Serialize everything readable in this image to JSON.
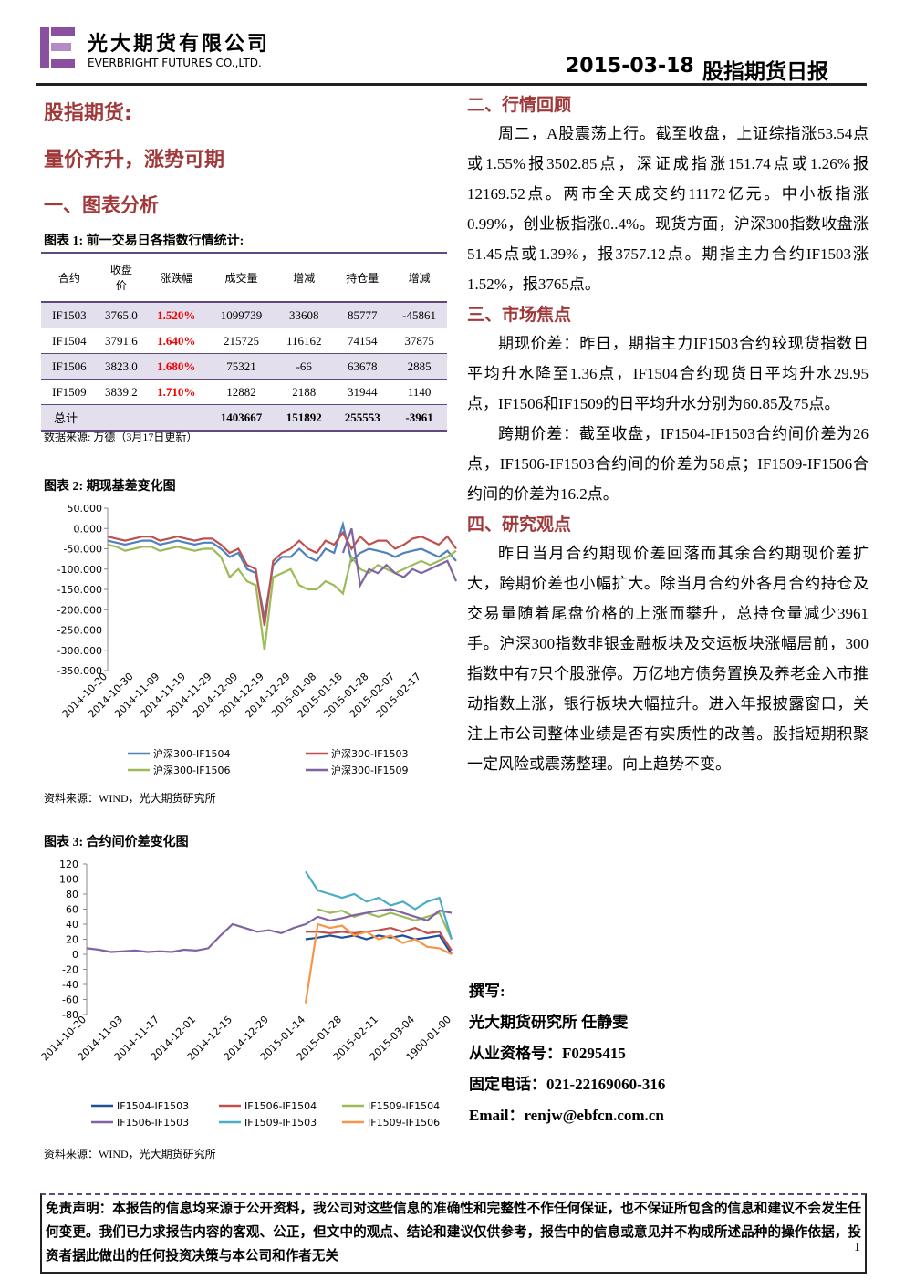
{
  "header": {
    "company_cn": "光大期货有限公司",
    "company_en": "EVERBRIGHT FUTURES CO.,LTD.",
    "date": "2015-03-18",
    "report_title": "股指期货日报"
  },
  "left": {
    "section_title": "股指期货:",
    "headline": "量价齐升，涨势可期",
    "heading1": "一、图表分析"
  },
  "table": {
    "caption": "图表 1:  前一交易日各指数行情统计:",
    "columns": [
      "合约",
      "收盘价",
      "涨跌幅",
      "成交量",
      "增减",
      "持仓量",
      "增减"
    ],
    "rows": [
      [
        "IF1503",
        "3765.0",
        "1.520%",
        "1099739",
        "33608",
        "85777",
        "-45861"
      ],
      [
        "IF1504",
        "3791.6",
        "1.640%",
        "215725",
        "116162",
        "74154",
        "37875"
      ],
      [
        "IF1506",
        "3823.0",
        "1.680%",
        "75321",
        "-66",
        "63678",
        "2885"
      ],
      [
        "IF1509",
        "3839.2",
        "1.710%",
        "12882",
        "2188",
        "31944",
        "1140"
      ]
    ],
    "total": {
      "label": "总计",
      "values": [
        "1403667",
        "151892",
        "255553",
        "-3961"
      ]
    },
    "source": "数据来源: 万德（3月17日更新）"
  },
  "chart_data": [
    {
      "type": "line",
      "title": "图表 2: 期现基差变化图",
      "source": "资料来源：WIND，光大期货研究所",
      "categories": [
        "2014-10-20",
        null,
        null,
        "2014-10-30",
        null,
        null,
        "2014-11-09",
        null,
        null,
        "2014-11-19",
        null,
        null,
        "2014-11-29",
        null,
        null,
        "2014-12-09",
        null,
        null,
        "2014-12-19",
        null,
        null,
        "2014-12-29",
        null,
        null,
        "2015-01-08",
        null,
        null,
        "2015-01-18",
        null,
        null,
        "2015-01-28",
        null,
        null,
        "2015-02-07",
        null,
        null,
        "2015-02-17",
        null,
        null,
        null,
        null
      ],
      "series": [
        {
          "name": "沪深300-IF1504",
          "color": "#4f81bd",
          "values": [
            -30,
            -35,
            -40,
            -35,
            -30,
            -30,
            -40,
            -35,
            -30,
            -35,
            -40,
            -35,
            -35,
            -50,
            -70,
            -60,
            -100,
            -110,
            -220,
            -90,
            -70,
            -70,
            -50,
            -70,
            -80,
            -50,
            -60,
            10,
            -80,
            -60,
            -50,
            -55,
            -60,
            -70,
            -60,
            -55,
            -50,
            -60,
            -70,
            -55,
            -80
          ]
        },
        {
          "name": "沪深300-IF1503",
          "color": "#c0504d",
          "values": [
            -20,
            -25,
            -30,
            -25,
            -20,
            -20,
            -30,
            -25,
            -20,
            -25,
            -30,
            -25,
            -25,
            -40,
            -60,
            -50,
            -90,
            -100,
            -240,
            -80,
            -60,
            -50,
            -30,
            -50,
            -60,
            -30,
            -40,
            -10,
            -50,
            -20,
            -40,
            -30,
            -30,
            -50,
            -40,
            -25,
            -20,
            -30,
            -40,
            -20,
            -50
          ]
        },
        {
          "name": "沪深300-IF1506",
          "color": "#9bbb59",
          "values": [
            -40,
            -45,
            -55,
            -50,
            -45,
            -45,
            -55,
            -50,
            -45,
            -50,
            -55,
            -50,
            -50,
            -70,
            -120,
            -100,
            -130,
            -140,
            -300,
            -120,
            -110,
            -100,
            -140,
            -150,
            -150,
            -130,
            -140,
            -160,
            -70,
            -100,
            -110,
            -90,
            -100,
            -110,
            -100,
            -90,
            -80,
            -90,
            -80,
            -70,
            -55
          ]
        },
        {
          "name": "沪深300-IF1509",
          "color": "#8064a2",
          "values": [
            null,
            null,
            null,
            null,
            null,
            null,
            null,
            null,
            null,
            null,
            null,
            null,
            null,
            null,
            null,
            null,
            null,
            null,
            null,
            null,
            null,
            null,
            null,
            null,
            null,
            null,
            null,
            -60,
            0,
            -140,
            -100,
            -110,
            -90,
            -110,
            -120,
            -100,
            -110,
            -100,
            -90,
            -80,
            -130
          ]
        }
      ],
      "ylim": [
        -350,
        50
      ],
      "yticks": [
        {
          "value": -350,
          "label": "-350.000"
        },
        {
          "value": -300,
          "label": "-300.000"
        },
        {
          "value": -250,
          "label": "-250.000"
        },
        {
          "value": -200,
          "label": "-200.000"
        },
        {
          "value": -150,
          "label": "-150.000"
        },
        {
          "value": -100,
          "label": "-100.000"
        },
        {
          "value": -50,
          "label": "-50.000"
        },
        {
          "value": 0,
          "label": "0.000"
        },
        {
          "value": 50,
          "label": "50.000"
        }
      ]
    },
    {
      "type": "line",
      "title": "图表 3: 合约间价差变化图",
      "source": "资料来源：WIND，光大期货研究所",
      "categories": [
        "2014-10-20",
        null,
        null,
        "2014-11-03",
        null,
        null,
        "2014-11-17",
        null,
        null,
        "2014-12-01",
        null,
        null,
        "2014-12-15",
        null,
        null,
        "2014-12-29",
        null,
        null,
        "2015-01-14",
        null,
        null,
        "2015-01-28",
        null,
        null,
        "2015-02-11",
        null,
        null,
        "2015-03-04",
        null,
        null,
        "1900-01-00"
      ],
      "series": [
        {
          "name": "IF1504-IF1503",
          "color": "#1f4e9a",
          "values": [
            null,
            null,
            null,
            null,
            null,
            null,
            null,
            null,
            null,
            null,
            null,
            null,
            null,
            null,
            null,
            null,
            null,
            null,
            20,
            22,
            25,
            22,
            25,
            20,
            25,
            22,
            25,
            20,
            22,
            25,
            0
          ]
        },
        {
          "name": "IF1506-IF1504",
          "color": "#c0504d",
          "values": [
            null,
            null,
            null,
            null,
            null,
            null,
            null,
            null,
            null,
            null,
            null,
            null,
            null,
            null,
            null,
            null,
            null,
            null,
            30,
            30,
            28,
            30,
            28,
            30,
            32,
            35,
            30,
            35,
            28,
            30,
            5
          ]
        },
        {
          "name": "IF1509-IF1504",
          "color": "#9bbb59",
          "values": [
            null,
            null,
            null,
            null,
            null,
            null,
            null,
            null,
            null,
            null,
            null,
            null,
            null,
            null,
            null,
            null,
            null,
            null,
            null,
            60,
            55,
            58,
            50,
            55,
            50,
            55,
            50,
            45,
            50,
            55,
            20
          ]
        },
        {
          "name": "IF1506-IF1503",
          "color": "#8064a2",
          "values": [
            8,
            6,
            3,
            4,
            5,
            3,
            4,
            3,
            6,
            5,
            8,
            25,
            40,
            35,
            30,
            32,
            28,
            35,
            40,
            50,
            45,
            48,
            52,
            55,
            58,
            60,
            55,
            50,
            45,
            58,
            55
          ]
        },
        {
          "name": "IF1509-IF1503",
          "color": "#4bacc6",
          "values": [
            null,
            null,
            null,
            null,
            null,
            null,
            null,
            null,
            null,
            null,
            null,
            null,
            null,
            null,
            null,
            null,
            null,
            null,
            110,
            85,
            80,
            75,
            80,
            70,
            75,
            65,
            70,
            60,
            70,
            75,
            20
          ]
        },
        {
          "name": "IF1509-IF1506",
          "color": "#f79646",
          "values": [
            null,
            null,
            null,
            null,
            null,
            null,
            null,
            null,
            null,
            null,
            null,
            null,
            null,
            null,
            null,
            null,
            null,
            null,
            -65,
            40,
            35,
            38,
            25,
            30,
            20,
            25,
            15,
            20,
            10,
            8,
            0
          ]
        }
      ],
      "ylim": [
        -80,
        120
      ],
      "yticks": [
        -80,
        -60,
        -40,
        -20,
        0,
        20,
        40,
        60,
        80,
        100,
        120
      ]
    }
  ],
  "right": {
    "sections": [
      {
        "heading": "二、行情回顾",
        "paragraphs": [
          "周二，A股震荡上行。截至收盘，上证综指涨53.54点或1.55%报3502.85点，深证成指涨151.74点或1.26%报12169.52点。两市全天成交约11172亿元。中小板指涨0.99%，创业板指涨0..4%。现货方面，沪深300指数收盘涨51.45点或1.39%，报3757.12点。期指主力合约IF1503涨1.52%，报3765点。"
        ]
      },
      {
        "heading": "三、市场焦点",
        "paragraphs": [
          "期现价差：昨日，期指主力IF1503合约较现货指数日平均升水降至1.36点，IF1504合约现货日平均升水29.95点，IF1506和IF1509的日平均升水分别为60.85及75点。",
          "跨期价差：截至收盘，IF1504-IF1503合约间价差为26点，IF1506-IF1503合约间的价差为58点；IF1509-IF1506合约间的价差为16.2点。"
        ]
      },
      {
        "heading": "四、研究观点",
        "paragraphs": [
          "昨日当月合约期现价差回落而其余合约期现价差扩大，跨期价差也小幅扩大。除当月合约外各月合约持仓及交易量随着尾盘价格的上涨而攀升，总持仓量减少3961手。沪深300指数非银金融板块及交运板块涨幅居前，300指数中有7只个股涨停。万亿地方债务置换及养老金入市推动指数上涨，银行板块大幅拉升。进入年报披露窗口，关注上市公司整体业绩是否有实质性的改善。股指短期积聚一定风险或震荡整理。向上趋势不变。"
        ]
      }
    ]
  },
  "author": {
    "label": "撰写:",
    "lines": [
      "光大期货研究所 任静雯",
      "从业资格号：F0295415",
      "固定电话：021-22169060-316",
      "Email：renjw@ebfcn.com.cn"
    ]
  },
  "footer": {
    "disclaimer": "免责声明：本报告的信息均来源于公开资料，我公司对这些信息的准确性和完整性不作任何保证，也不保证所包含的信息和建议不会发生任何变更。我们已力求报告内容的客观、公正，但文中的观点、结论和建议仅供参考，报告中的信息或意见并不构成所述品种的操作依据，投资者据此做出的任何投资决策与本公司和作者无关",
    "page": "1"
  }
}
